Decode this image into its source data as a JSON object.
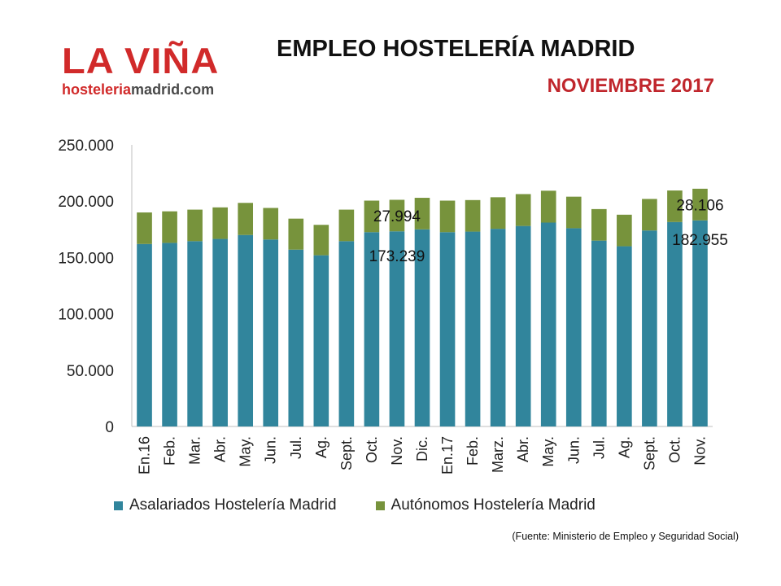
{
  "logo": {
    "main": "LA VIÑA",
    "sub_a": "hosteleria",
    "sub_b": "madrid.com"
  },
  "header": {
    "title": "EMPLEO HOSTELERÍA MADRID",
    "subtitle": "NOVIEMBRE 2017"
  },
  "source": "(Fuente: Ministerio de Empleo y Seguridad Social)",
  "colors": {
    "asalariados": "#31859c",
    "autonomos": "#77933c",
    "accent": "#c0262c"
  },
  "chart_data": {
    "type": "bar",
    "stacked": true,
    "categories": [
      "En.16",
      "Feb.",
      "Mar.",
      "Abr.",
      "May.",
      "Jun.",
      "Jul.",
      "Ag.",
      "Sept.",
      "Oct.",
      "Nov.",
      "Dic.",
      "En.17",
      "Feb.",
      "Marz.",
      "Abr.",
      "May.",
      "Jun.",
      "Jul.",
      "Ag.",
      "Sept.",
      "Oct.",
      "Nov."
    ],
    "series": [
      {
        "name": "Asalariados Hostelería Madrid",
        "color": "#31859c",
        "values": [
          162000,
          163000,
          164500,
          166500,
          170000,
          166000,
          157000,
          152000,
          164500,
          172500,
          173239,
          175000,
          172500,
          173000,
          175500,
          178000,
          181000,
          176000,
          165000,
          160000,
          174000,
          181500,
          182955
        ]
      },
      {
        "name": "Autónomos Hostelería Madrid",
        "color": "#77933c",
        "values": [
          28000,
          28000,
          28000,
          28000,
          28500,
          28000,
          27500,
          27000,
          28000,
          28000,
          27994,
          28000,
          28000,
          28000,
          28000,
          28300,
          28300,
          28000,
          28000,
          28000,
          28000,
          28000,
          28106
        ]
      }
    ],
    "data_labels": [
      {
        "index": 10,
        "series": 1,
        "text": "27.994"
      },
      {
        "index": 10,
        "series": 0,
        "text": "173.239"
      },
      {
        "index": 22,
        "series": 1,
        "text": "28.106"
      },
      {
        "index": 22,
        "series": 0,
        "text": "182.955"
      }
    ],
    "ylim": [
      0,
      250000
    ],
    "yticks": [
      0,
      50000,
      100000,
      150000,
      200000,
      250000
    ],
    "ytick_labels": [
      "0",
      "50.000",
      "100.000",
      "150.000",
      "200.000",
      "250.000"
    ],
    "grid": false,
    "legend_position": "bottom"
  }
}
